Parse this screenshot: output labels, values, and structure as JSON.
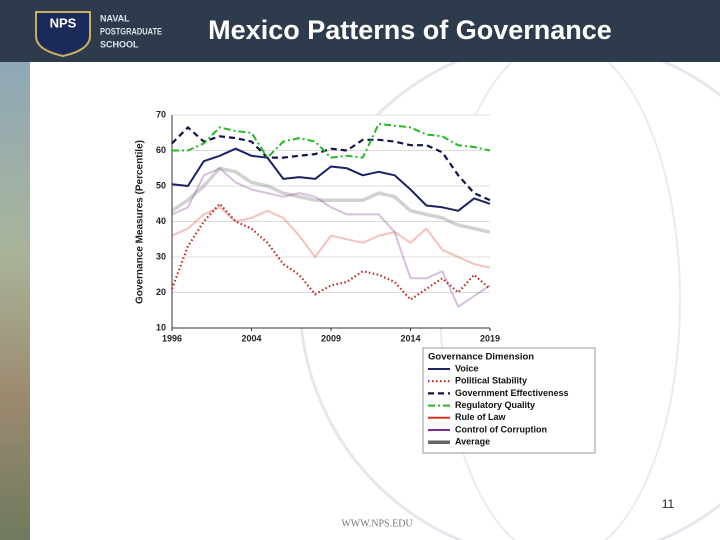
{
  "header": {
    "logo_lines": [
      "NAVAL",
      "POSTGRADUATE",
      "SCHOOL"
    ],
    "logo_badge": "NPS"
  },
  "footer": {
    "url": "WWW.NPS.EDU",
    "page_number": "11"
  },
  "chart_data": {
    "type": "line",
    "title": "Mexico Patterns of Governance",
    "y_label": "Governance Measures (Percentile)",
    "legend_title": "Governance Dimension",
    "categories": [
      "1996",
      null,
      null,
      null,
      null,
      "2004",
      null,
      null,
      null,
      null,
      "2009",
      null,
      null,
      null,
      null,
      "2014",
      null,
      null,
      null,
      null,
      "2019"
    ],
    "ylim": [
      10,
      70
    ],
    "yticks": [
      10,
      20,
      30,
      40,
      50,
      60,
      70
    ],
    "grid": true,
    "series": [
      {
        "name": "Voice",
        "color": "#1a2366",
        "style": "solid",
        "values": [
          50.5,
          50,
          57,
          58.5,
          60.5,
          58.5,
          58,
          52,
          52.5,
          52,
          55.5,
          55,
          53,
          54,
          53,
          49,
          44.5,
          44,
          43,
          46.5,
          45
        ]
      },
      {
        "name": "Political Stability",
        "color": "#c0281e",
        "style": "dotted",
        "values": [
          21,
          33,
          40,
          45,
          40,
          38,
          34,
          28,
          25,
          19.5,
          22,
          23,
          26,
          25,
          23,
          18,
          21,
          24,
          20,
          25,
          21
        ]
      },
      {
        "name": "Government Effectiveness",
        "color": "#10154a",
        "style": "dashed",
        "values": [
          62,
          66.5,
          62.5,
          64,
          63.5,
          62.5,
          58,
          58,
          58.5,
          59,
          60.5,
          60,
          63,
          63,
          62.5,
          61.5,
          61.5,
          59.5,
          53,
          48,
          46
        ]
      },
      {
        "name": "Regulatory Quality",
        "color": "#22bb22",
        "style": "dashdot",
        "values": [
          60,
          60,
          62,
          66.5,
          65.5,
          65,
          58,
          62.5,
          63.5,
          62.5,
          58,
          58.5,
          58,
          67.5,
          67,
          66.5,
          64.5,
          64,
          61.5,
          61,
          60
        ]
      },
      {
        "name": "Rule of Law",
        "color": "#e03020",
        "style": "solid",
        "faded": true,
        "values": [
          36,
          38,
          42,
          44,
          40,
          41,
          43,
          41,
          36,
          30,
          36,
          35,
          34,
          36,
          37,
          34,
          38,
          32,
          30,
          28,
          27
        ]
      },
      {
        "name": "Control of Corruption",
        "color": "#7a2a90",
        "style": "solid",
        "faded": true,
        "values": [
          42,
          44,
          53,
          55,
          51,
          49,
          48,
          47,
          48,
          47,
          44,
          42,
          42,
          42,
          37,
          24,
          24,
          26,
          16,
          19,
          22
        ]
      },
      {
        "name": "Average",
        "color": "#666666",
        "style": "thick",
        "faded": true,
        "values": [
          43,
          46,
          50,
          55,
          54,
          51,
          50,
          48,
          47,
          46,
          46,
          46,
          46,
          48,
          47,
          43,
          42,
          41,
          39,
          38,
          37
        ]
      }
    ]
  }
}
